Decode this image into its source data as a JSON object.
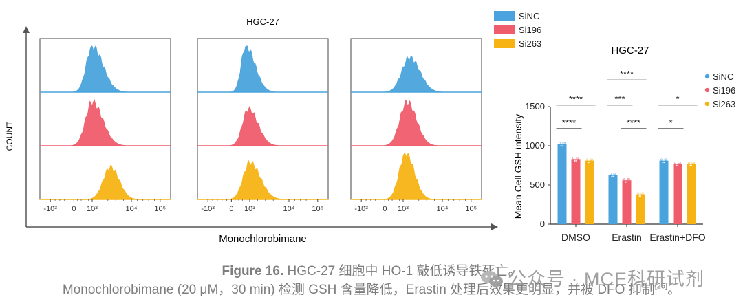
{
  "flow": {
    "title": "HGC-27",
    "ylabel": "COUNT",
    "xlabel": "Monochlorobimane",
    "xticks": [
      "-10³",
      "0",
      "10³",
      "10⁴",
      "10⁵"
    ],
    "rows": [
      "SiNC",
      "Si196",
      "Si263"
    ],
    "legend": [
      {
        "name": "SiNC",
        "color": "#4aa3dc"
      },
      {
        "name": "Si196",
        "color": "#ef5c6b"
      },
      {
        "name": "Si263",
        "color": "#f7b314"
      }
    ],
    "panels": [
      {
        "peaks": [
          {
            "mu": 0.4,
            "sig": 0.045,
            "h": 1.0,
            "skew": 0.8
          },
          {
            "mu": 0.4,
            "sig": 0.05,
            "h": 0.95,
            "skew": 0.6
          },
          {
            "mu": 0.54,
            "sig": 0.055,
            "h": 0.7,
            "skew": 0.2
          }
        ]
      },
      {
        "peaks": [
          {
            "mu": 0.37,
            "sig": 0.035,
            "h": 1.0,
            "skew": 1.0
          },
          {
            "mu": 0.39,
            "sig": 0.045,
            "h": 0.8,
            "skew": 0.6
          },
          {
            "mu": 0.4,
            "sig": 0.05,
            "h": 0.8,
            "skew": 0.6
          }
        ]
      },
      {
        "peaks": [
          {
            "mu": 0.45,
            "sig": 0.06,
            "h": 0.75,
            "skew": 0.3
          },
          {
            "mu": 0.43,
            "sig": 0.055,
            "h": 0.95,
            "skew": 0.3
          },
          {
            "mu": 0.42,
            "sig": 0.05,
            "h": 1.0,
            "skew": 0.3
          }
        ]
      }
    ]
  },
  "chart_data": {
    "type": "bar",
    "title": "HGC-27",
    "ylabel": "Mean Cell GSH intensity",
    "xlabel": "",
    "categories": [
      "DMSO",
      "Erastin",
      "Erastin+DFO"
    ],
    "ylim": [
      0,
      1500
    ],
    "yticks": [
      0,
      500,
      1000,
      1500
    ],
    "series": [
      {
        "name": "SiNC",
        "color": "#4aa3dc",
        "values": [
          1020,
          630,
          810
        ]
      },
      {
        "name": "Si196",
        "color": "#ef5c6b",
        "values": [
          830,
          560,
          770
        ]
      },
      {
        "name": "Si263",
        "color": "#f7b314",
        "values": [
          810,
          380,
          770
        ]
      }
    ],
    "legend_position": "right",
    "significance": [
      {
        "label": "****",
        "group": 0,
        "from": 0,
        "to": 2,
        "level": 1520
      },
      {
        "label": "****",
        "group": 0,
        "from": 0,
        "to": 1,
        "level": 1220
      },
      {
        "label": "****",
        "group": 1,
        "from": 0,
        "to": 2,
        "level": 1840
      },
      {
        "label": "***",
        "group": 1,
        "from": 0,
        "to": 1,
        "level": 1520
      },
      {
        "label": "****",
        "group": 1,
        "from": 1,
        "to": 2,
        "level": 1220
      },
      {
        "label": "*",
        "group": 2,
        "from": 0,
        "to": 2,
        "level": 1520
      },
      {
        "label": "*",
        "group": 2,
        "from": 0,
        "to": 1,
        "level": 1220
      }
    ]
  },
  "caption": {
    "line1_bold": "Figure 16.",
    "line1_rest": " HGC-27 细胞中 HO-1 敲低诱导铁死亡。",
    "line2_main": "Monochlorobimane (20 μM，30 min) 检测 GSH 含量降低，Erastin 处理后效果更明显，并被 DFO 抑制",
    "line2_ref": "[25]",
    "line2_end": "。"
  },
  "watermark": "公众号 · MCE科研试剂"
}
